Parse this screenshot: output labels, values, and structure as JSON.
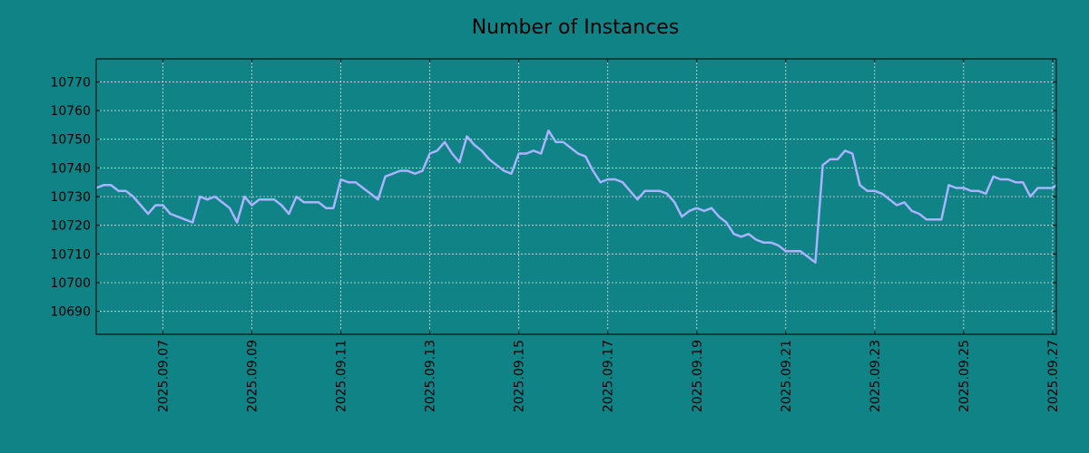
{
  "chart_data": {
    "type": "line",
    "title": "Number of Instances",
    "xlabel": "",
    "ylabel": "",
    "x_type": "datetime",
    "xlim": [
      "2025-09-05 12:00",
      "2025-09-27 02:00"
    ],
    "ylim": [
      10682,
      10778
    ],
    "yticks": [
      10690,
      10700,
      10710,
      10720,
      10730,
      10740,
      10750,
      10760,
      10770
    ],
    "xticks": [
      "2025.09.07",
      "2025.09.09",
      "2025.09.11",
      "2025.09.13",
      "2025.09.15",
      "2025.09.17",
      "2025.09.19",
      "2025.09.21",
      "2025.09.23",
      "2025.09.25",
      "2025.09.27"
    ],
    "grid": true,
    "colors": {
      "background": "#108386",
      "line": "#A9B3FF",
      "grid": "#E0E0E0",
      "axis": "#000000"
    },
    "series": [
      {
        "name": "",
        "x": [
          "2025-09-05 12:00",
          "2025-09-05 16:00",
          "2025-09-05 20:00",
          "2025-09-06 00:00",
          "2025-09-06 04:00",
          "2025-09-06 08:00",
          "2025-09-06 12:00",
          "2025-09-06 16:00",
          "2025-09-06 20:00",
          "2025-09-07 00:00",
          "2025-09-07 04:00",
          "2025-09-07 08:00",
          "2025-09-07 12:00",
          "2025-09-07 16:00",
          "2025-09-07 20:00",
          "2025-09-08 00:00",
          "2025-09-08 04:00",
          "2025-09-08 08:00",
          "2025-09-08 12:00",
          "2025-09-08 16:00",
          "2025-09-08 20:00",
          "2025-09-09 00:00",
          "2025-09-09 04:00",
          "2025-09-09 08:00",
          "2025-09-09 12:00",
          "2025-09-09 16:00",
          "2025-09-09 20:00",
          "2025-09-10 00:00",
          "2025-09-10 04:00",
          "2025-09-10 08:00",
          "2025-09-10 12:00",
          "2025-09-10 16:00",
          "2025-09-10 20:00",
          "2025-09-11 00:00",
          "2025-09-11 04:00",
          "2025-09-11 08:00",
          "2025-09-11 12:00",
          "2025-09-11 16:00",
          "2025-09-11 20:00",
          "2025-09-12 00:00",
          "2025-09-12 04:00",
          "2025-09-12 08:00",
          "2025-09-12 12:00",
          "2025-09-12 16:00",
          "2025-09-12 20:00",
          "2025-09-13 00:00",
          "2025-09-13 04:00",
          "2025-09-13 08:00",
          "2025-09-13 12:00",
          "2025-09-13 16:00",
          "2025-09-13 20:00",
          "2025-09-14 00:00",
          "2025-09-14 04:00",
          "2025-09-14 08:00",
          "2025-09-14 12:00",
          "2025-09-14 16:00",
          "2025-09-14 20:00",
          "2025-09-15 00:00",
          "2025-09-15 04:00",
          "2025-09-15 08:00",
          "2025-09-15 12:00",
          "2025-09-15 16:00",
          "2025-09-15 20:00",
          "2025-09-16 00:00",
          "2025-09-16 04:00",
          "2025-09-16 08:00",
          "2025-09-16 12:00",
          "2025-09-16 16:00",
          "2025-09-16 20:00",
          "2025-09-17 00:00",
          "2025-09-17 04:00",
          "2025-09-17 08:00",
          "2025-09-17 12:00",
          "2025-09-17 16:00",
          "2025-09-17 20:00",
          "2025-09-18 00:00",
          "2025-09-18 04:00",
          "2025-09-18 08:00",
          "2025-09-18 12:00",
          "2025-09-18 16:00",
          "2025-09-18 20:00",
          "2025-09-19 00:00",
          "2025-09-19 04:00",
          "2025-09-19 08:00",
          "2025-09-19 12:00",
          "2025-09-19 16:00",
          "2025-09-19 20:00",
          "2025-09-20 00:00",
          "2025-09-20 04:00",
          "2025-09-20 08:00",
          "2025-09-20 12:00",
          "2025-09-20 16:00",
          "2025-09-20 20:00",
          "2025-09-21 00:00",
          "2025-09-21 04:00",
          "2025-09-21 08:00",
          "2025-09-21 12:00",
          "2025-09-21 16:00",
          "2025-09-21 20:00",
          "2025-09-22 00:00",
          "2025-09-22 04:00",
          "2025-09-22 08:00",
          "2025-09-22 12:00",
          "2025-09-22 16:00",
          "2025-09-22 20:00",
          "2025-09-23 00:00",
          "2025-09-23 04:00",
          "2025-09-23 08:00",
          "2025-09-23 12:00",
          "2025-09-23 16:00",
          "2025-09-23 20:00",
          "2025-09-24 00:00",
          "2025-09-24 04:00",
          "2025-09-24 08:00",
          "2025-09-24 12:00",
          "2025-09-24 16:00",
          "2025-09-24 20:00",
          "2025-09-25 00:00",
          "2025-09-25 04:00",
          "2025-09-25 08:00",
          "2025-09-25 12:00",
          "2025-09-25 16:00",
          "2025-09-25 20:00",
          "2025-09-26 00:00",
          "2025-09-26 04:00",
          "2025-09-26 08:00",
          "2025-09-26 12:00",
          "2025-09-26 16:00",
          "2025-09-26 20:00",
          "2025-09-27 00:00",
          "2025-09-27 02:00"
        ],
        "y": [
          10733,
          10734,
          10734,
          10732,
          10732,
          10730,
          10727,
          10724,
          10727,
          10727,
          10724,
          10723,
          10722,
          10721,
          10730,
          10729,
          10730,
          10728,
          10726,
          10721,
          10730,
          10727,
          10729,
          10729,
          10729,
          10727,
          10724,
          10730,
          10728,
          10728,
          10728,
          10726,
          10726,
          10736,
          10735,
          10735,
          10733,
          10731,
          10729,
          10737,
          10738,
          10739,
          10739,
          10738,
          10739,
          10745,
          10746,
          10749,
          10745,
          10742,
          10751,
          10748,
          10746,
          10743,
          10741,
          10739,
          10738,
          10745,
          10745,
          10746,
          10745,
          10753,
          10749,
          10749,
          10747,
          10745,
          10744,
          10739,
          10735,
          10736,
          10736,
          10735,
          10732,
          10729,
          10732,
          10732,
          10732,
          10731,
          10728,
          10723,
          10725,
          10726,
          10725,
          10726,
          10723,
          10721,
          10717,
          10716,
          10717,
          10715,
          10714,
          10714,
          10713,
          10711,
          10711,
          10711,
          10709,
          10707,
          10741,
          10743,
          10743,
          10746,
          10745,
          10734,
          10732,
          10732,
          10731,
          10729,
          10727,
          10728,
          10725,
          10724,
          10722,
          10722,
          10722,
          10734,
          10733,
          10733,
          10732,
          10732,
          10731,
          10737,
          10736,
          10736,
          10735,
          10735,
          10730,
          10733,
          10733,
          10733,
          10734
        ]
      }
    ]
  }
}
